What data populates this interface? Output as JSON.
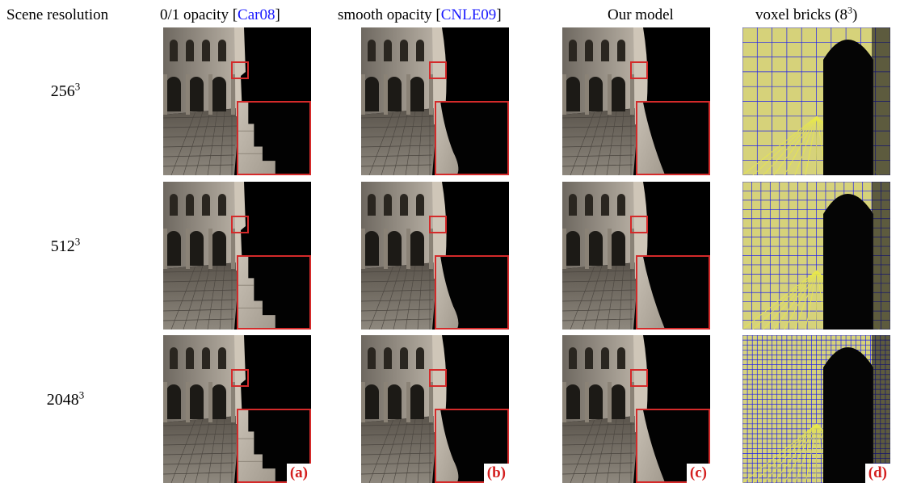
{
  "headers": {
    "scene_resolution": "Scene resolution",
    "col_a_prefix": "0/1 opacity [",
    "col_a_cite": "Car08",
    "col_a_suffix": "]",
    "col_b_prefix": "smooth opacity [",
    "col_b_cite": "CNLE09",
    "col_b_suffix": "]",
    "col_c": "Our model",
    "col_d_prefix": "voxel bricks (8",
    "col_d_sup": "3",
    "col_d_suffix": ")"
  },
  "rows": [
    {
      "base": "256",
      "sup": "3"
    },
    {
      "base": "512",
      "sup": "3"
    },
    {
      "base": "2048",
      "sup": "3"
    }
  ],
  "column_letters": [
    "(a)",
    "(b)",
    "(c)",
    "(d)"
  ],
  "colors": {
    "zoom_box": "#d42a2a",
    "letter": "#d41f1f",
    "citation": "#1a1aff",
    "grid_blue": "#1e1ef0",
    "grid_yellow": "#e8e84a"
  }
}
